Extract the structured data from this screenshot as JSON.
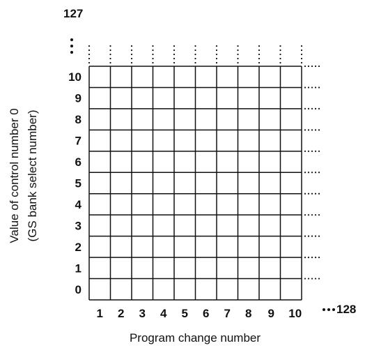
{
  "y_axis": {
    "top_label": "127",
    "ticks": [
      "0",
      "1",
      "2",
      "3",
      "4",
      "5",
      "6",
      "7",
      "8",
      "9",
      "10"
    ],
    "title_line1": "Value of control number 0",
    "title_line2": "(GS bank select number)"
  },
  "x_axis": {
    "ticks": [
      "1",
      "2",
      "3",
      "4",
      "5",
      "6",
      "7",
      "8",
      "9",
      "10"
    ],
    "end_label": "128",
    "title": "Program change number"
  },
  "grid": {
    "rows": 11,
    "cols": 10
  }
}
